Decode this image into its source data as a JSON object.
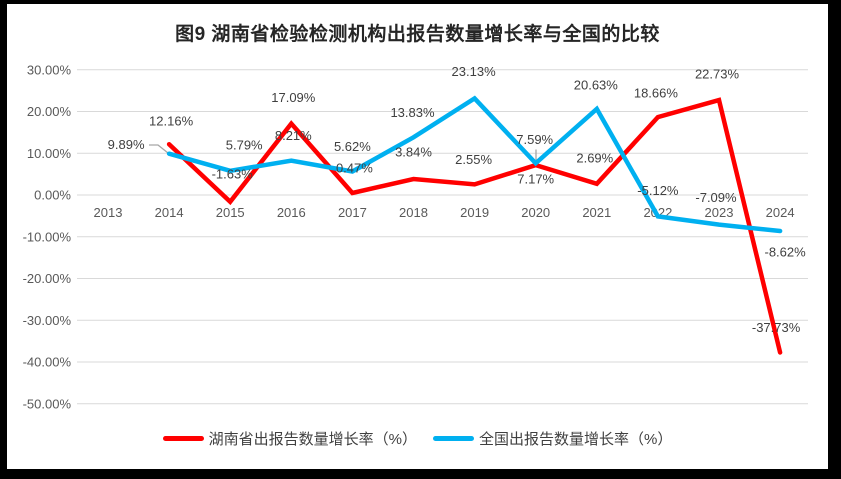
{
  "chart_data": {
    "type": "line",
    "title": "图9 湖南省检验检测机构出报告数量增长率与全国的比较",
    "categories": [
      "2013",
      "2014",
      "2015",
      "2016",
      "2017",
      "2018",
      "2019",
      "2020",
      "2021",
      "2022",
      "2023",
      "2024"
    ],
    "series_start_index": 1,
    "ylim": [
      -50,
      30
    ],
    "grid": true,
    "legend_position": "bottom",
    "y_ticks": [
      30,
      20,
      10,
      0,
      -10,
      -20,
      -30,
      -40,
      -50
    ],
    "y_tick_labels": [
      "30.00%",
      "20.00%",
      "10.00%",
      "0.00%",
      "-10.00%",
      "-20.00%",
      "-30.00%",
      "-40.00%",
      "-50.00%"
    ],
    "series": [
      {
        "name": "湖南省出报告数量增长率（%）",
        "color": "#FF0000",
        "values": [
          12.16,
          -1.63,
          17.09,
          0.47,
          3.84,
          2.55,
          7.17,
          2.69,
          18.66,
          22.73,
          -37.73
        ],
        "labels": [
          "12.16%",
          "-1.63%",
          "17.09%",
          "0.47%",
          "3.84%",
          "2.55%",
          "7.17%",
          "2.69%",
          "18.66%",
          "22.73%",
          "-37.73%"
        ],
        "label_offsets": [
          [
            2,
            -23
          ],
          [
            2,
            -28
          ],
          [
            2,
            -26
          ],
          [
            2,
            -25
          ],
          [
            0,
            -27
          ],
          [
            -1,
            -25
          ],
          [
            0,
            14
          ],
          [
            -2,
            -26
          ],
          [
            -2,
            -24
          ],
          [
            -2,
            -26
          ],
          [
            -4,
            -25
          ]
        ]
      },
      {
        "name": "全国出报告数量增长率（%）",
        "color": "#00B0F0",
        "values": [
          9.89,
          5.79,
          8.21,
          5.62,
          13.83,
          23.13,
          7.59,
          20.63,
          -5.12,
          -7.09,
          -8.62
        ],
        "labels": [
          "9.89%",
          "5.79%",
          "8.21%",
          "5.62%",
          "13.83%",
          "23.13%",
          "7.59%",
          "20.63%",
          "-5.12%",
          "-7.09%",
          "-8.62%"
        ],
        "label_offsets": [
          [
            -43,
            -9
          ],
          [
            14,
            -26
          ],
          [
            2,
            -25
          ],
          [
            0,
            -25
          ],
          [
            -1,
            -25
          ],
          [
            -1,
            -27
          ],
          [
            -1,
            -24
          ],
          [
            -1,
            -24
          ],
          [
            0,
            -26
          ],
          [
            -3,
            -27
          ],
          [
            5,
            21
          ]
        ]
      }
    ],
    "colors": {
      "gridline": "#D9D9D9",
      "axis_text": "#595959",
      "label_text": "#404040",
      "leader": "#A6A6A6",
      "title_text": "#262626",
      "frame_bg": "#000000",
      "chart_bg": "#FFFFFF"
    }
  }
}
